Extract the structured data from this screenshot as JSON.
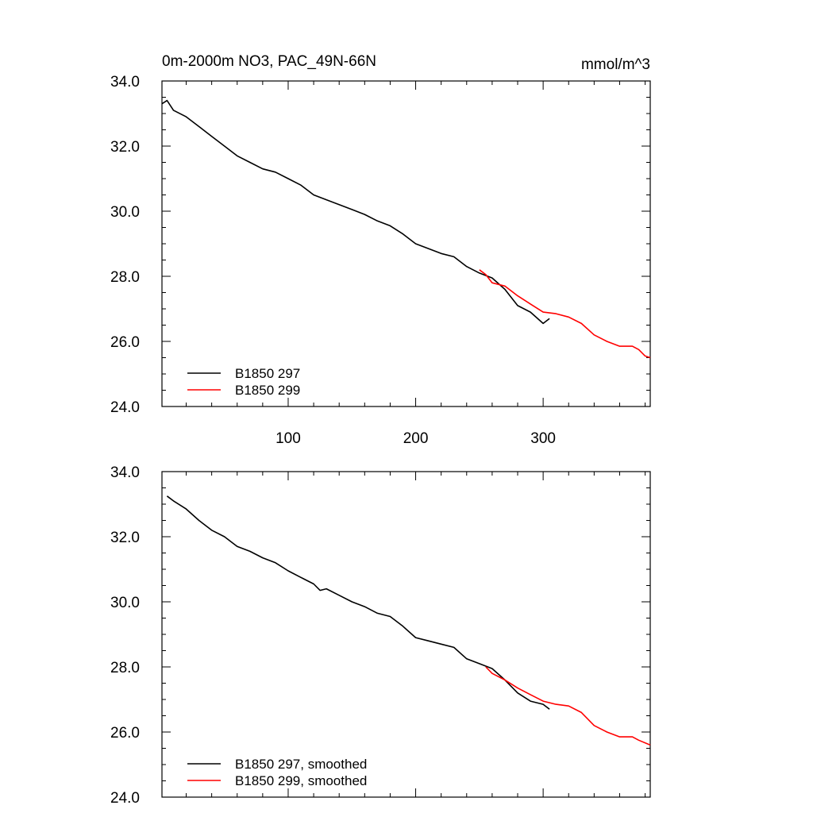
{
  "chart_data": [
    {
      "type": "line",
      "title": "0m-2000m NO3, PAC_49N-66N",
      "units": "mmol/m^3",
      "xlim": [
        1,
        384
      ],
      "ylim": [
        24.0,
        34.0
      ],
      "xticks": [
        100,
        200,
        300
      ],
      "yticks": [
        "24.0",
        "26.0",
        "28.0",
        "30.0",
        "32.0",
        "34.0"
      ],
      "grid": false,
      "legend_position": "bottom-left",
      "series": [
        {
          "name": "B1850 297",
          "color": "#000000",
          "x": [
            1,
            5,
            10,
            20,
            30,
            40,
            50,
            60,
            70,
            80,
            90,
            100,
            110,
            120,
            130,
            140,
            150,
            160,
            170,
            180,
            190,
            200,
            210,
            220,
            230,
            240,
            250,
            260,
            270,
            280,
            290,
            300,
            305
          ],
          "y": [
            33.3,
            33.4,
            33.1,
            32.9,
            32.6,
            32.3,
            32.0,
            31.7,
            31.5,
            31.3,
            31.2,
            31.0,
            30.8,
            30.5,
            30.35,
            30.2,
            30.05,
            29.9,
            29.7,
            29.55,
            29.3,
            29.0,
            28.85,
            28.7,
            28.6,
            28.3,
            28.1,
            27.95,
            27.6,
            27.1,
            26.9,
            26.55,
            26.7
          ]
        },
        {
          "name": "B1850 299",
          "color": "#ff0000",
          "x": [
            250,
            255,
            260,
            270,
            280,
            290,
            300,
            310,
            320,
            330,
            340,
            350,
            360,
            370,
            375,
            380,
            384
          ],
          "y": [
            28.2,
            28.05,
            27.8,
            27.7,
            27.4,
            27.15,
            26.9,
            26.85,
            26.75,
            26.55,
            26.2,
            26.0,
            25.85,
            25.85,
            25.75,
            25.55,
            25.5
          ]
        }
      ]
    },
    {
      "type": "line",
      "title": "",
      "xlim": [
        1,
        384
      ],
      "ylim": [
        24.0,
        34.0
      ],
      "yticks": [
        "24.0",
        "26.0",
        "28.0",
        "30.0",
        "32.0",
        "34.0"
      ],
      "grid": false,
      "legend_position": "bottom-left",
      "series": [
        {
          "name": "B1850 297, smoothed",
          "color": "#000000",
          "x": [
            5,
            10,
            20,
            30,
            40,
            50,
            60,
            70,
            80,
            90,
            100,
            110,
            120,
            125,
            130,
            140,
            150,
            160,
            170,
            180,
            190,
            200,
            210,
            220,
            230,
            240,
            250,
            260,
            270,
            280,
            290,
            300,
            305
          ],
          "y": [
            33.25,
            33.1,
            32.85,
            32.5,
            32.2,
            32.0,
            31.7,
            31.55,
            31.35,
            31.2,
            30.95,
            30.75,
            30.55,
            30.35,
            30.4,
            30.2,
            30.0,
            29.85,
            29.65,
            29.55,
            29.25,
            28.9,
            28.8,
            28.7,
            28.6,
            28.25,
            28.1,
            27.95,
            27.6,
            27.2,
            26.95,
            26.85,
            26.7
          ]
        },
        {
          "name": "B1850 299, smoothed",
          "color": "#ff0000",
          "x": [
            255,
            260,
            270,
            280,
            290,
            300,
            310,
            320,
            330,
            340,
            350,
            360,
            370,
            375,
            384
          ],
          "y": [
            28.0,
            27.8,
            27.6,
            27.35,
            27.15,
            26.95,
            26.85,
            26.8,
            26.6,
            26.2,
            26.0,
            25.85,
            25.85,
            25.75,
            25.6
          ]
        }
      ]
    }
  ]
}
